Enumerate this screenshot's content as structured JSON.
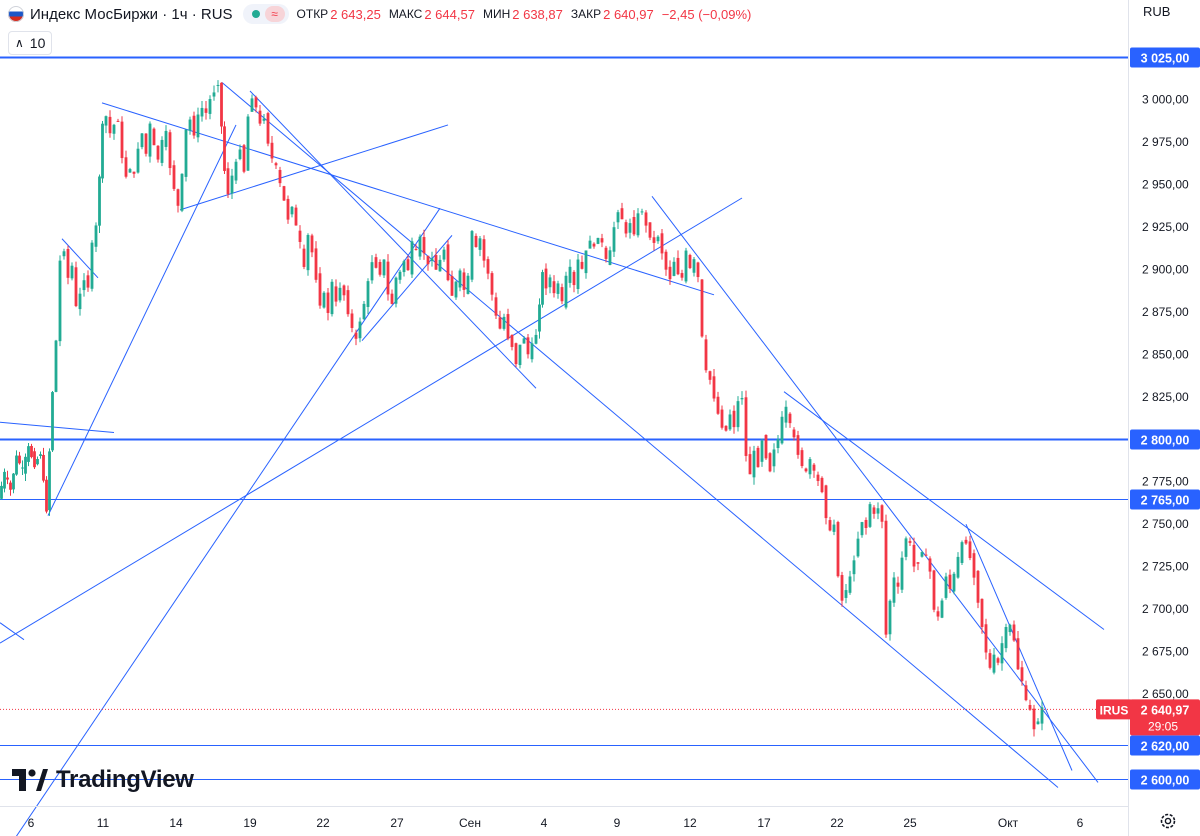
{
  "header": {
    "title": "Индекс МосБиржи · 1ч · RUS",
    "open_label": "ОТКР",
    "open_value": "2 643,25",
    "high_label": "МАКС",
    "high_value": "2 644,57",
    "low_label": "МИН",
    "low_value": "2 638,87",
    "close_label": "ЗАКР",
    "close_value": "2 640,97",
    "change": "−2,45 (−0,09%)",
    "status_color": "#22ab94",
    "wave_icon": "≈"
  },
  "indicator": {
    "chevron": "∧",
    "value": "10"
  },
  "currency": "RUB",
  "logo_text": "TradingView",
  "colors": {
    "up": "#22ab94",
    "down": "#f23645",
    "line": "#2962ff",
    "badge": "#2962ff",
    "price_badge": "#f23645"
  },
  "chart_data": {
    "type": "candlestick",
    "symbol": "IRUS",
    "timeframe": "1h",
    "last_price": "2 640,97",
    "countdown": "29:05",
    "ylim": [
      2590,
      3045
    ],
    "y_tick_labels": [
      "3 000,00",
      "2 975,00",
      "2 950,00",
      "2 925,00",
      "2 900,00",
      "2 875,00",
      "2 850,00",
      "2 825,00",
      "2 775,00",
      "2 750,00",
      "2 725,00",
      "2 700,00",
      "2 675,00",
      "2 650,00"
    ],
    "y_tick_values": [
      3000,
      2975,
      2950,
      2925,
      2900,
      2875,
      2850,
      2825,
      2775,
      2750,
      2725,
      2700,
      2675,
      2650
    ],
    "x_tick_labels": [
      "6",
      "11",
      "14",
      "19",
      "22",
      "27",
      "Сен",
      "4",
      "9",
      "12",
      "17",
      "22",
      "25",
      "Окт",
      "6"
    ],
    "horizontal_levels": [
      {
        "value": 3025,
        "label": "3 025,00",
        "weight": "thick"
      },
      {
        "value": 2800,
        "label": "2 800,00",
        "weight": "thick"
      },
      {
        "value": 2765,
        "label": "2 765,00",
        "weight": "thin"
      },
      {
        "value": 2620,
        "label": "2 620,00",
        "weight": "thin"
      },
      {
        "value": 2600,
        "label": "2 600,00",
        "weight": "thin"
      }
    ],
    "price_path": [
      [
        0,
        2765
      ],
      [
        6,
        2780
      ],
      [
        12,
        2770
      ],
      [
        18,
        2790
      ],
      [
        24,
        2782
      ],
      [
        30,
        2795
      ],
      [
        36,
        2785
      ],
      [
        42,
        2792
      ],
      [
        48,
        2758
      ],
      [
        54,
        2828
      ],
      [
        58,
        2858
      ],
      [
        62,
        2905
      ],
      [
        66,
        2912
      ],
      [
        70,
        2895
      ],
      [
        74,
        2902
      ],
      [
        78,
        2878
      ],
      [
        82,
        2885
      ],
      [
        86,
        2895
      ],
      [
        90,
        2890
      ],
      [
        94,
        2915
      ],
      [
        98,
        2925
      ],
      [
        104,
        2985
      ],
      [
        108,
        2990
      ],
      [
        112,
        2980
      ],
      [
        116,
        2985
      ],
      [
        120,
        2988
      ],
      [
        124,
        2965
      ],
      [
        128,
        2955
      ],
      [
        132,
        2960
      ],
      [
        136,
        2955
      ],
      [
        140,
        2972
      ],
      [
        144,
        2980
      ],
      [
        148,
        2968
      ],
      [
        152,
        2985
      ],
      [
        156,
        2972
      ],
      [
        160,
        2965
      ],
      [
        164,
        2975
      ],
      [
        168,
        2980
      ],
      [
        172,
        2960
      ],
      [
        176,
        2948
      ],
      [
        180,
        2937
      ],
      [
        184,
        2955
      ],
      [
        188,
        2982
      ],
      [
        192,
        2988
      ],
      [
        196,
        2980
      ],
      [
        200,
        2990
      ],
      [
        204,
        2995
      ],
      [
        208,
        2992
      ],
      [
        212,
        3000
      ],
      [
        216,
        3005
      ],
      [
        220,
        3010
      ],
      [
        226,
        2958
      ],
      [
        230,
        2945
      ],
      [
        234,
        2955
      ],
      [
        238,
        2962
      ],
      [
        242,
        2972
      ],
      [
        246,
        2958
      ],
      [
        250,
        2990
      ],
      [
        254,
        3002
      ],
      [
        258,
        2995
      ],
      [
        262,
        2985
      ],
      [
        266,
        2990
      ],
      [
        270,
        2975
      ],
      [
        274,
        2965
      ],
      [
        278,
        2960
      ],
      [
        282,
        2950
      ],
      [
        286,
        2940
      ],
      [
        290,
        2930
      ],
      [
        294,
        2938
      ],
      [
        298,
        2925
      ],
      [
        302,
        2915
      ],
      [
        306,
        2900
      ],
      [
        310,
        2920
      ],
      [
        314,
        2910
      ],
      [
        318,
        2895
      ],
      [
        322,
        2880
      ],
      [
        326,
        2885
      ],
      [
        330,
        2875
      ],
      [
        334,
        2892
      ],
      [
        338,
        2880
      ],
      [
        342,
        2890
      ],
      [
        346,
        2885
      ],
      [
        350,
        2875
      ],
      [
        354,
        2865
      ],
      [
        358,
        2858
      ],
      [
        362,
        2870
      ],
      [
        366,
        2880
      ],
      [
        370,
        2892
      ],
      [
        374,
        2905
      ],
      [
        378,
        2902
      ],
      [
        382,
        2898
      ],
      [
        386,
        2905
      ],
      [
        390,
        2885
      ],
      [
        394,
        2880
      ],
      [
        398,
        2895
      ],
      [
        402,
        2898
      ],
      [
        406,
        2905
      ],
      [
        410,
        2900
      ],
      [
        414,
        2915
      ],
      [
        418,
        2910
      ],
      [
        422,
        2918
      ],
      [
        426,
        2910
      ],
      [
        430,
        2902
      ],
      [
        434,
        2908
      ],
      [
        438,
        2900
      ],
      [
        442,
        2905
      ],
      [
        446,
        2912
      ],
      [
        450,
        2895
      ],
      [
        454,
        2885
      ],
      [
        458,
        2892
      ],
      [
        462,
        2898
      ],
      [
        466,
        2888
      ],
      [
        470,
        2895
      ],
      [
        474,
        2922
      ],
      [
        478,
        2912
      ],
      [
        482,
        2918
      ],
      [
        486,
        2905
      ],
      [
        490,
        2898
      ],
      [
        494,
        2885
      ],
      [
        498,
        2872
      ],
      [
        502,
        2865
      ],
      [
        506,
        2872
      ],
      [
        510,
        2860
      ],
      [
        514,
        2855
      ],
      [
        518,
        2845
      ],
      [
        522,
        2855
      ],
      [
        526,
        2860
      ],
      [
        530,
        2850
      ],
      [
        534,
        2855
      ],
      [
        538,
        2862
      ],
      [
        544,
        2898
      ],
      [
        548,
        2890
      ],
      [
        552,
        2895
      ],
      [
        556,
        2885
      ],
      [
        560,
        2892
      ],
      [
        564,
        2880
      ],
      [
        568,
        2895
      ],
      [
        572,
        2900
      ],
      [
        576,
        2890
      ],
      [
        580,
        2905
      ],
      [
        584,
        2900
      ],
      [
        588,
        2910
      ],
      [
        592,
        2918
      ],
      [
        596,
        2912
      ],
      [
        600,
        2920
      ],
      [
        604,
        2915
      ],
      [
        608,
        2905
      ],
      [
        612,
        2910
      ],
      [
        616,
        2925
      ],
      [
        620,
        2935
      ],
      [
        624,
        2930
      ],
      [
        628,
        2920
      ],
      [
        632,
        2928
      ],
      [
        636,
        2922
      ],
      [
        640,
        2932
      ],
      [
        644,
        2935
      ],
      [
        648,
        2925
      ],
      [
        652,
        2920
      ],
      [
        656,
        2915
      ],
      [
        660,
        2920
      ],
      [
        664,
        2910
      ],
      [
        668,
        2900
      ],
      [
        672,
        2895
      ],
      [
        676,
        2905
      ],
      [
        680,
        2898
      ],
      [
        684,
        2895
      ],
      [
        688,
        2910
      ],
      [
        692,
        2900
      ],
      [
        696,
        2905
      ],
      [
        700,
        2895
      ],
      [
        704,
        2860
      ],
      [
        708,
        2840
      ],
      [
        712,
        2835
      ],
      [
        716,
        2825
      ],
      [
        720,
        2815
      ],
      [
        724,
        2808
      ],
      [
        728,
        2805
      ],
      [
        732,
        2815
      ],
      [
        736,
        2808
      ],
      [
        740,
        2822
      ],
      [
        744,
        2825
      ],
      [
        748,
        2790
      ],
      [
        752,
        2780
      ],
      [
        756,
        2792
      ],
      [
        760,
        2785
      ],
      [
        764,
        2800
      ],
      [
        768,
        2790
      ],
      [
        772,
        2782
      ],
      [
        776,
        2795
      ],
      [
        780,
        2800
      ],
      [
        784,
        2812
      ],
      [
        788,
        2818
      ],
      [
        792,
        2808
      ],
      [
        796,
        2800
      ],
      [
        800,
        2792
      ],
      [
        804,
        2785
      ],
      [
        808,
        2780
      ],
      [
        812,
        2788
      ],
      [
        816,
        2780
      ],
      [
        820,
        2775
      ],
      [
        824,
        2770
      ],
      [
        828,
        2755
      ],
      [
        832,
        2745
      ],
      [
        836,
        2750
      ],
      [
        840,
        2720
      ],
      [
        844,
        2705
      ],
      [
        848,
        2712
      ],
      [
        852,
        2718
      ],
      [
        856,
        2730
      ],
      [
        860,
        2742
      ],
      [
        864,
        2752
      ],
      [
        868,
        2748
      ],
      [
        872,
        2762
      ],
      [
        876,
        2755
      ],
      [
        880,
        2760
      ],
      [
        884,
        2752
      ],
      [
        888,
        2685
      ],
      [
        892,
        2705
      ],
      [
        896,
        2718
      ],
      [
        900,
        2712
      ],
      [
        904,
        2730
      ],
      [
        908,
        2742
      ],
      [
        912,
        2738
      ],
      [
        916,
        2725
      ],
      [
        920,
        2728
      ],
      [
        924,
        2735
      ],
      [
        928,
        2730
      ],
      [
        932,
        2722
      ],
      [
        936,
        2700
      ],
      [
        940,
        2695
      ],
      [
        944,
        2705
      ],
      [
        948,
        2720
      ],
      [
        952,
        2712
      ],
      [
        956,
        2720
      ],
      [
        960,
        2730
      ],
      [
        964,
        2738
      ],
      [
        968,
        2740
      ],
      [
        972,
        2730
      ],
      [
        976,
        2720
      ],
      [
        980,
        2705
      ],
      [
        984,
        2690
      ],
      [
        988,
        2675
      ],
      [
        992,
        2665
      ],
      [
        996,
        2672
      ],
      [
        1000,
        2668
      ],
      [
        1004,
        2680
      ],
      [
        1008,
        2688
      ],
      [
        1012,
        2690
      ],
      [
        1016,
        2682
      ],
      [
        1020,
        2665
      ],
      [
        1024,
        2658
      ],
      [
        1028,
        2645
      ],
      [
        1032,
        2640
      ],
      [
        1036,
        2630
      ],
      [
        1040,
        2635
      ],
      [
        1044,
        2641
      ]
    ],
    "trendlines": [
      [
        [
          0,
          2552
        ],
        [
          440,
          2936
        ]
      ],
      [
        [
          0,
          2810
        ],
        [
          114,
          2804
        ]
      ],
      [
        [
          48,
          2755
        ],
        [
          236,
          2985
        ]
      ],
      [
        [
          180,
          2935
        ],
        [
          448,
          2985
        ]
      ],
      [
        [
          102,
          2998
        ],
        [
          714,
          2885
        ]
      ],
      [
        [
          222,
          3010
        ],
        [
          1058,
          2595
        ]
      ],
      [
        [
          250,
          3005
        ],
        [
          536,
          2830
        ]
      ],
      [
        [
          362,
          2858
        ],
        [
          452,
          2920
        ]
      ],
      [
        [
          0,
          2680
        ],
        [
          742,
          2942
        ]
      ],
      [
        [
          652,
          2943
        ],
        [
          1098,
          2598
        ]
      ],
      [
        [
          784,
          2828
        ],
        [
          1104,
          2688
        ]
      ],
      [
        [
          966,
          2750
        ],
        [
          1072,
          2605
        ]
      ],
      [
        [
          0,
          2692
        ],
        [
          24,
          2682
        ]
      ],
      [
        [
          62,
          2918
        ],
        [
          98,
          2895
        ]
      ]
    ]
  }
}
